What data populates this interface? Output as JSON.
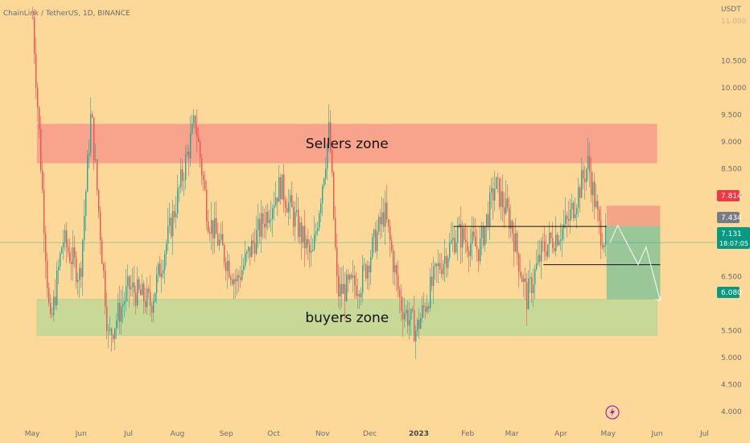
{
  "header": {
    "symbol_text": "ChainLink / TetherUS, 1D, BINANCE",
    "currency": "USDT",
    "top_faded_tick": "11.000"
  },
  "colors": {
    "background": "#fdd999",
    "up_candle": "#26a69a",
    "down_candle": "#ef5350",
    "sellers_zone": "#f8a08a",
    "buyers_zone": "#c5d896",
    "short_risk": "#f39e86",
    "short_reward": "#8fc497",
    "current_price_line": "#26a69a",
    "lightning": "#9c27b0"
  },
  "axis": {
    "y_ticks": [
      "10.500",
      "10.000",
      "9.500",
      "9.000",
      "8.500",
      "8.000",
      "6.500",
      "5.500",
      "5.000",
      "4.500",
      "4.000"
    ],
    "x_ticks": [
      "May",
      "Jun",
      "Jul",
      "Aug",
      "Sep",
      "Oct",
      "Nov",
      "Dec",
      "2023",
      "Feb",
      "Mar",
      "Apr",
      "May",
      "Jun",
      "Jul"
    ]
  },
  "price_tags": {
    "stop": {
      "value": "7.814",
      "color": "#f23645"
    },
    "entry": {
      "value": "7.434",
      "color": "#787b86"
    },
    "current": {
      "value": "7.131",
      "countdown": "18:07:05",
      "color": "#089981"
    },
    "target": {
      "value": "6.080",
      "color": "#089981"
    }
  },
  "annotations": {
    "sellers_label": "Sellers zone",
    "buyers_label": "buyers zone"
  },
  "chart_data": {
    "type": "candlestick",
    "title": "ChainLink / TetherUS, 1D, BINANCE",
    "xlabel": "",
    "ylabel": "",
    "ylim": [
      3.85,
      11.4
    ],
    "grid": false,
    "zones": [
      {
        "name": "Sellers zone",
        "from": 8.6,
        "to": 9.33,
        "x_start": "2022-05-01",
        "x_end": "2023-06-01"
      },
      {
        "name": "buyers zone",
        "from": 5.41,
        "to": 6.08,
        "x_start": "2022-05-01",
        "x_end": "2023-06-01"
      }
    ],
    "lines": [
      {
        "from_date": "2023-01-23",
        "to_date": "2023-04-30",
        "value": 7.43
      },
      {
        "from_date": "2023-03-21",
        "to_date": "2023-06-03",
        "value": 6.72
      }
    ],
    "short_position": {
      "entry": 7.434,
      "stop": 7.814,
      "target": 6.08
    },
    "projection": [
      {
        "date": "2023-05-02",
        "value": 7.12
      },
      {
        "date": "2023-05-07",
        "value": 7.45
      },
      {
        "date": "2023-05-20",
        "value": 6.72
      },
      {
        "date": "2023-05-25",
        "value": 7.05
      },
      {
        "date": "2023-06-03",
        "value": 6.05
      }
    ],
    "key_points": [
      {
        "date": "2022-05-01",
        "value": 11.3
      },
      {
        "date": "2022-05-12",
        "value": 5.5
      },
      {
        "date": "2022-05-20",
        "value": 7.2
      },
      {
        "date": "2022-05-31",
        "value": 6.5
      },
      {
        "date": "2022-06-07",
        "value": 9.55
      },
      {
        "date": "2022-06-18",
        "value": 5.35
      },
      {
        "date": "2022-07-01",
        "value": 6.3
      },
      {
        "date": "2022-07-15",
        "value": 6.0
      },
      {
        "date": "2022-07-28",
        "value": 7.5
      },
      {
        "date": "2022-08-12",
        "value": 9.4
      },
      {
        "date": "2022-08-20",
        "value": 7.6
      },
      {
        "date": "2022-09-07",
        "value": 6.4
      },
      {
        "date": "2022-09-25",
        "value": 7.6
      },
      {
        "date": "2022-10-05",
        "value": 8.2
      },
      {
        "date": "2022-10-25",
        "value": 6.8
      },
      {
        "date": "2022-11-05",
        "value": 9.25
      },
      {
        "date": "2022-11-10",
        "value": 6.2
      },
      {
        "date": "2022-11-25",
        "value": 6.4
      },
      {
        "date": "2022-12-10",
        "value": 7.7
      },
      {
        "date": "2022-12-20",
        "value": 6.0
      },
      {
        "date": "2022-12-30",
        "value": 5.5
      },
      {
        "date": "2023-01-12",
        "value": 6.6
      },
      {
        "date": "2023-01-25",
        "value": 7.3
      },
      {
        "date": "2023-02-08",
        "value": 7.0
      },
      {
        "date": "2023-02-18",
        "value": 8.2
      },
      {
        "date": "2023-02-28",
        "value": 7.5
      },
      {
        "date": "2023-03-10",
        "value": 6.1
      },
      {
        "date": "2023-03-20",
        "value": 7.0
      },
      {
        "date": "2023-04-05",
        "value": 7.5
      },
      {
        "date": "2023-04-18",
        "value": 8.6
      },
      {
        "date": "2023-04-25",
        "value": 7.4
      },
      {
        "date": "2023-04-30",
        "value": 7.13
      }
    ]
  }
}
